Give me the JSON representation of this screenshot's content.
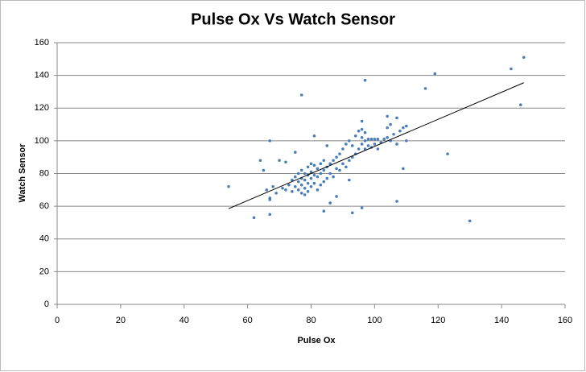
{
  "chart_data": {
    "type": "scatter",
    "title": "Pulse Ox Vs Watch Sensor",
    "x_label": "Pulse Ox",
    "y_label": "Watch Sensor",
    "xlim": [
      0,
      160
    ],
    "xticks": [
      0,
      20,
      40,
      60,
      80,
      100,
      120,
      140,
      160
    ],
    "ylim": [
      0,
      160
    ],
    "yticks": [
      0,
      20,
      40,
      60,
      80,
      100,
      120,
      140,
      160
    ],
    "grid": true,
    "series": [
      {
        "color": "#4a7ebb",
        "x": [
          54,
          62,
          64,
          65,
          66,
          67,
          67,
          68,
          69,
          70,
          71,
          72,
          72,
          73,
          74,
          74,
          75,
          75,
          75,
          76,
          76,
          76,
          77,
          77,
          77,
          77,
          78,
          78,
          78,
          78,
          79,
          79,
          79,
          79,
          80,
          80,
          80,
          80,
          81,
          81,
          81,
          82,
          82,
          82,
          83,
          83,
          83,
          84,
          84,
          84,
          85,
          85,
          85,
          86,
          86,
          87,
          87,
          88,
          88,
          89,
          89,
          90,
          90,
          91,
          91,
          92,
          92,
          93,
          93,
          94,
          94,
          95,
          95,
          96,
          96,
          96,
          96,
          97,
          97,
          97,
          98,
          98,
          99,
          99,
          100,
          100,
          101,
          101,
          102,
          103,
          104,
          104,
          104,
          105,
          105,
          106,
          107,
          107,
          108,
          109,
          110,
          110,
          86,
          84,
          93,
          96,
          107,
          109,
          123,
          130,
          116,
          119,
          143,
          147,
          146,
          97,
          77,
          81,
          67,
          67,
          92,
          88
        ],
        "values": [
          72,
          53,
          88,
          82,
          70,
          55,
          65,
          72,
          68,
          88,
          71,
          70,
          87,
          73,
          69,
          76,
          72,
          78,
          93,
          70,
          75,
          80,
          68,
          73,
          77,
          82,
          67,
          71,
          76,
          80,
          69,
          74,
          79,
          84,
          72,
          77,
          81,
          86,
          74,
          79,
          85,
          70,
          78,
          83,
          73,
          80,
          86,
          75,
          82,
          88,
          77,
          84,
          97,
          80,
          86,
          78,
          88,
          83,
          90,
          82,
          92,
          86,
          95,
          84,
          98,
          88,
          100,
          90,
          97,
          92,
          103,
          95,
          106,
          98,
          102,
          107,
          112,
          95,
          100,
          105,
          97,
          101,
          96,
          101,
          98,
          101,
          95,
          101,
          99,
          101,
          102,
          108,
          115,
          100,
          110,
          104,
          98,
          114,
          106,
          108,
          100,
          109,
          62,
          57,
          56,
          59,
          63,
          83,
          92,
          51,
          132,
          141,
          144,
          151,
          122,
          137,
          128,
          103,
          100,
          64,
          76,
          66
        ]
      }
    ],
    "trendline": {
      "x": [
        54,
        147
      ],
      "values": [
        58.5,
        135.5
      ],
      "color": "#000000"
    }
  }
}
